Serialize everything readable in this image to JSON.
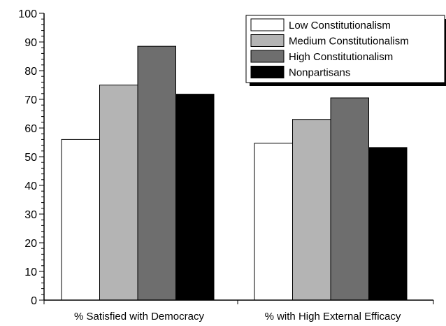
{
  "chart_data": {
    "type": "bar",
    "categories": [
      "% Satisfied with Democracy",
      "% with High External Efficacy"
    ],
    "series": [
      {
        "name": "Low Constitutionalism",
        "values": [
          56,
          54.7
        ],
        "color": "#ffffff"
      },
      {
        "name": "Medium Constitutionalism",
        "values": [
          75,
          63
        ],
        "color": "#b4b4b4"
      },
      {
        "name": "High Constitutionalism",
        "values": [
          88.5,
          70.5
        ],
        "color": "#6e6e6e"
      },
      {
        "name": "Nonpartisans",
        "values": [
          71.8,
          53.2
        ],
        "color": "#000000"
      }
    ],
    "ylim": [
      0,
      100
    ],
    "yticks": [
      "0",
      "10",
      "20",
      "30",
      "40",
      "50",
      "60",
      "70",
      "80",
      "90",
      "100"
    ],
    "grid": false,
    "legend_position": "top-right",
    "title": "",
    "xlabel": "",
    "ylabel": ""
  }
}
